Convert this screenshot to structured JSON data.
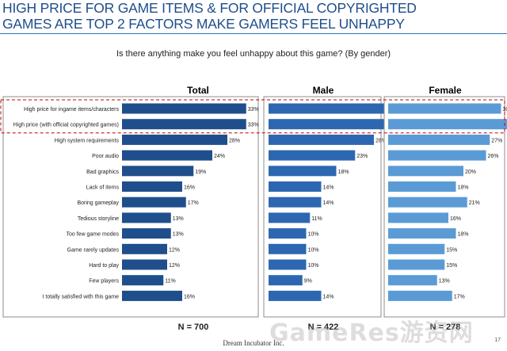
{
  "slide": {
    "title_line1": "HIGH PRICE FOR GAME ITEMS & FOR OFFICIAL COPYRIGHTED",
    "title_line2": "GAMES ARE TOP 2 FACTORS MAKE GAMERS FEEL UNHAPPY",
    "question": "Is there anything make you feel unhappy about this game? (By gender)",
    "company": "Dream Incubator Inc.",
    "page_number": "17",
    "watermark": "GameRes游资网"
  },
  "chart_data": [
    {
      "type": "bar",
      "orientation": "horizontal",
      "title": "Total",
      "categories": [
        "High price for ingame items/characters",
        "High price (with official copyrighted games)",
        "High system requirements",
        "Poor audio",
        "Bad graphics",
        "Lack of items",
        "Boring gameplay",
        "Tedious storyline",
        "Too few game modes",
        "Game rarely updates",
        "Hard to play",
        "Few players",
        "I totally satisfied with this game"
      ],
      "values": [
        33,
        33,
        28,
        24,
        19,
        16,
        17,
        13,
        13,
        12,
        12,
        11,
        16
      ],
      "value_labels": [
        "33%",
        "33%",
        "28%",
        "24%",
        "19%",
        "16%",
        "17%",
        "13%",
        "13%",
        "12%",
        "12%",
        "11%",
        "16%"
      ],
      "n_label": "N = 700",
      "color": "#1f4e8c"
    },
    {
      "type": "bar",
      "orientation": "horizontal",
      "title": "Male",
      "categories": [
        "High price for ingame items/characters",
        "High price (with official copyrighted games)",
        "High system requirements",
        "Poor audio",
        "Bad graphics",
        "Lack of items",
        "Boring gameplay",
        "Tedious storyline",
        "Too few game modes",
        "Game rarely updates",
        "Hard to play",
        "Few players",
        "I totally satisfied with this game"
      ],
      "values": [
        36,
        32,
        28,
        23,
        18,
        14,
        14,
        11,
        10,
        10,
        10,
        9,
        14
      ],
      "value_labels": [
        "36%",
        "32%",
        "28%",
        "23%",
        "18%",
        "14%",
        "14%",
        "11%",
        "10%",
        "10%",
        "10%",
        "9%",
        "14%"
      ],
      "n_label": "N = 422",
      "color": "#2e67b1"
    },
    {
      "type": "bar",
      "orientation": "horizontal",
      "title": "Female",
      "categories": [
        "High price for ingame items/characters",
        "High price (with official copyrighted games)",
        "High system requirements",
        "Poor audio",
        "Bad graphics",
        "Lack of items",
        "Boring gameplay",
        "Tedious storyline",
        "Too few game modes",
        "Game rarely updates",
        "Hard to play",
        "Few players",
        "I totally satisfied with this game"
      ],
      "values": [
        30,
        36,
        27,
        26,
        20,
        18,
        21,
        16,
        18,
        15,
        15,
        13,
        17
      ],
      "value_labels": [
        "30%",
        "36%",
        "27%",
        "26%",
        "20%",
        "18%",
        "21%",
        "16%",
        "18%",
        "15%",
        "15%",
        "13%",
        "17%"
      ],
      "n_label": "N = 278",
      "color": "#5b9bd5"
    }
  ],
  "highlight": {
    "rows": [
      0,
      1
    ],
    "style": "dashed",
    "color": "#c00000"
  }
}
